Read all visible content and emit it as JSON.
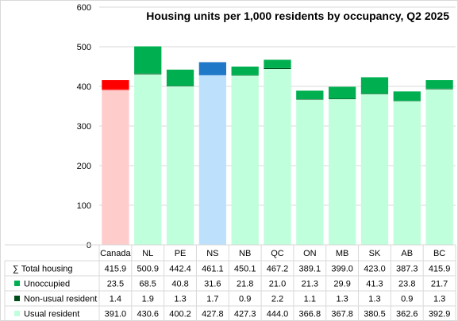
{
  "chart_data": {
    "type": "bar",
    "stacked": true,
    "title": "Housing units per 1,000 residents by occupancy, Q2 2025",
    "categories": [
      "Canada",
      "NL",
      "PE",
      "NS",
      "NB",
      "QC",
      "ON",
      "MB",
      "SK",
      "AB",
      "BC"
    ],
    "ylim": [
      0,
      600
    ],
    "yticks": [
      "0",
      "100",
      "200",
      "300",
      "400",
      "500",
      "600"
    ],
    "grid": true,
    "highlight_colors": {
      "Canada": {
        "Usual resident": "#ffcccc",
        "Non-usual resident": "#ff0000",
        "Unoccupied": "#ff0000"
      },
      "NS": {
        "Usual resident": "#bde0fd",
        "Non-usual resident": "#1f78c8",
        "Unoccupied": "#1f78c8"
      }
    },
    "table": {
      "total_label": "∑ Total housing",
      "total_values": [
        "415.9",
        "500.9",
        "442.4",
        "461.1",
        "450.1",
        "467.2",
        "389.1",
        "399.0",
        "423.0",
        "387.3",
        "415.9"
      ]
    },
    "series": [
      {
        "name": "Unoccupied",
        "color": "#00b050",
        "values": [
          23.5,
          68.5,
          40.8,
          31.6,
          21.8,
          21.0,
          21.3,
          29.9,
          41.3,
          23.8,
          21.7
        ],
        "labels": [
          "23.5",
          "68.5",
          "40.8",
          "31.6",
          "21.8",
          "21.0",
          "21.3",
          "29.9",
          "41.3",
          "23.8",
          "21.7"
        ]
      },
      {
        "name": "Non-usual resident",
        "color": "#004d1a",
        "values": [
          1.4,
          1.9,
          1.3,
          1.7,
          0.9,
          2.2,
          1.1,
          1.3,
          1.3,
          0.9,
          1.3
        ],
        "labels": [
          "1.4",
          "1.9",
          "1.3",
          "1.7",
          "0.9",
          "2.2",
          "1.1",
          "1.3",
          "1.3",
          "0.9",
          "1.3"
        ]
      },
      {
        "name": "Usual resident",
        "color": "#bfffdc",
        "values": [
          391.0,
          430.6,
          400.2,
          427.8,
          427.3,
          444.0,
          366.8,
          367.8,
          380.5,
          362.6,
          392.9
        ],
        "labels": [
          "391.0",
          "430.6",
          "400.2",
          "427.8",
          "427.3",
          "444.0",
          "366.8",
          "367.8",
          "380.5",
          "362.6",
          "392.9"
        ]
      }
    ]
  }
}
